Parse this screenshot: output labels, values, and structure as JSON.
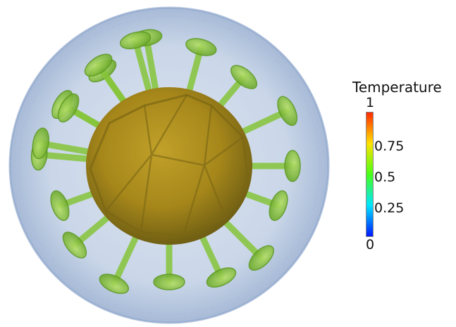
{
  "legend": {
    "title": "Temperature",
    "ticks": [
      "1",
      "0.75",
      "0.5",
      "0.25",
      "0"
    ],
    "gradient": [
      "#ff2a00",
      "#ffe200",
      "#48ff17",
      "#00e5ff",
      "#0018ff"
    ]
  },
  "colors": {
    "outer_shell": "#b6c6dd",
    "plumes": "#79c128",
    "core": "#b8811a"
  }
}
